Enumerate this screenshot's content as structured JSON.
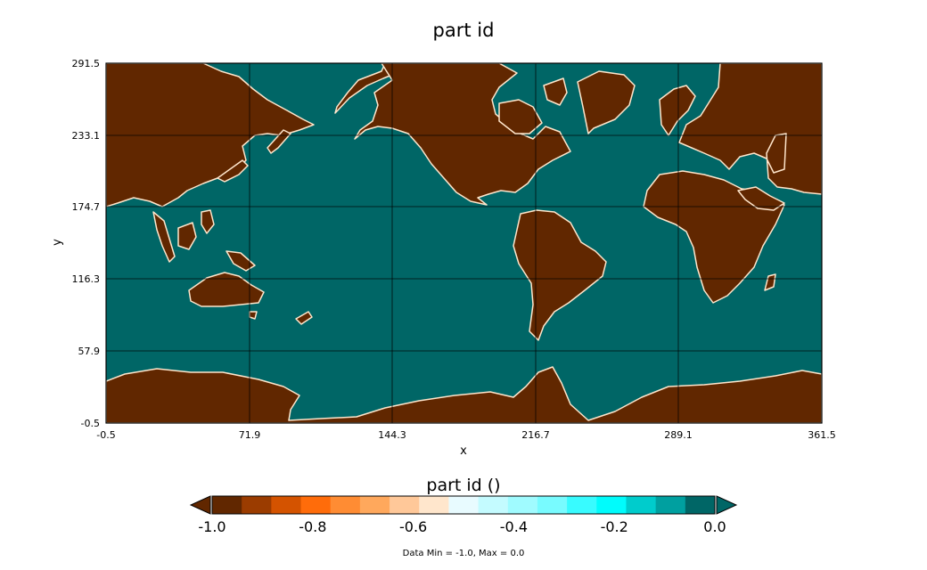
{
  "chart_data": {
    "type": "heatmap",
    "title": "part id",
    "xlabel": "x",
    "ylabel": "y",
    "xlim": [
      -0.5,
      361.5
    ],
    "ylim": [
      -0.5,
      291.5
    ],
    "x_ticks": [
      "-0.5",
      "71.9",
      "144.3",
      "216.7",
      "289.1",
      "361.5"
    ],
    "y_ticks": [
      "-0.5",
      "57.9",
      "116.3",
      "174.7",
      "233.1",
      "291.5"
    ],
    "grid": true,
    "value_range": [
      -1.0,
      0.0
    ],
    "values_present": {
      "land": -1.0,
      "ocean": 0.0
    },
    "colorbar": {
      "title": "part id ()",
      "tick_labels": [
        "-1.0",
        "-0.8",
        "-0.6",
        "-0.4",
        "-0.2",
        "0.0"
      ],
      "colors": [
        "#612700",
        "#9b3c00",
        "#d45300",
        "#ff6c0a",
        "#ff8c33",
        "#ffa85c",
        "#ffc899",
        "#ffe6cc",
        "#e8fbff",
        "#c4fbff",
        "#a0fbff",
        "#78fbff",
        "#38fbff",
        "#00fcfc",
        "#00cccc",
        "#00a0a0",
        "#006666"
      ],
      "under_color": "#612700",
      "over_color": "#006666"
    },
    "footer": "Data Min = -1.0, Max = 0.0",
    "land_color": "#612700",
    "ocean_color": "#006666",
    "coast_color": "#ffe6cc"
  }
}
